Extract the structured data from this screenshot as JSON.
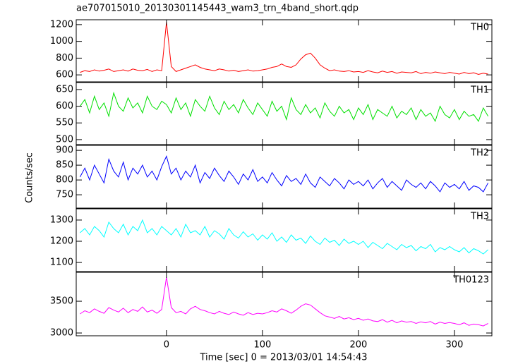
{
  "chart_data": [
    {
      "type": "line",
      "title": "ae707015010_20130301145443_wam3_trn_4band_short.qdp",
      "series": [
        {
          "name": "TH0",
          "color": "#ff0000",
          "values": [
            630,
            650,
            640,
            660,
            645,
            655,
            670,
            640,
            650,
            660,
            645,
            670,
            655,
            650,
            665,
            640,
            660,
            650,
            1230,
            700,
            640,
            660,
            680,
            700,
            720,
            690,
            670,
            660,
            650,
            670,
            660,
            645,
            655,
            640,
            650,
            660,
            645,
            650,
            660,
            670,
            690,
            700,
            730,
            700,
            690,
            720,
            790,
            840,
            860,
            800,
            720,
            680,
            650,
            660,
            645,
            640,
            650,
            635,
            640,
            630,
            650,
            635,
            625,
            645,
            630,
            640,
            620,
            635,
            630,
            625,
            640,
            615,
            630,
            620,
            635,
            625,
            615,
            630,
            620,
            610,
            630,
            615,
            625,
            605,
            620,
            610
          ]
        }
      ],
      "ylim": [
        517,
        1258
      ],
      "yticks": [
        600,
        800,
        1000,
        1200
      ]
    },
    {
      "type": "line",
      "series": [
        {
          "name": "TH1",
          "color": "#00e000",
          "values": [
            600,
            620,
            580,
            630,
            590,
            610,
            570,
            640,
            600,
            585,
            625,
            595,
            610,
            580,
            630,
            600,
            590,
            615,
            605,
            580,
            625,
            590,
            610,
            570,
            620,
            600,
            585,
            630,
            595,
            575,
            615,
            590,
            605,
            580,
            620,
            595,
            575,
            610,
            590,
            570,
            615,
            585,
            600,
            560,
            625,
            590,
            575,
            605,
            580,
            595,
            565,
            610,
            585,
            570,
            600,
            580,
            590,
            560,
            595,
            575,
            605,
            560,
            590,
            580,
            570,
            600,
            565,
            585,
            575,
            595,
            560,
            590,
            570,
            580,
            555,
            600,
            575,
            565,
            590,
            560,
            585,
            570,
            575,
            555,
            595,
            570
          ]
        }
      ],
      "ylim": [
        485,
        671
      ],
      "yticks": [
        500,
        550,
        600,
        650
      ]
    },
    {
      "type": "line",
      "ylabel": "Counts/sec",
      "series": [
        {
          "name": "TH2",
          "color": "#0000ff",
          "values": [
            810,
            840,
            800,
            850,
            820,
            790,
            870,
            830,
            810,
            860,
            800,
            840,
            820,
            850,
            810,
            830,
            800,
            845,
            880,
            820,
            840,
            800,
            830,
            810,
            850,
            790,
            825,
            805,
            840,
            815,
            795,
            830,
            810,
            785,
            820,
            800,
            835,
            795,
            810,
            790,
            825,
            800,
            780,
            815,
            795,
            805,
            785,
            820,
            790,
            775,
            810,
            795,
            780,
            805,
            790,
            770,
            800,
            785,
            795,
            780,
            800,
            770,
            790,
            805,
            775,
            795,
            780,
            765,
            800,
            785,
            775,
            790,
            770,
            795,
            780,
            760,
            790,
            775,
            785,
            770,
            795,
            765,
            780,
            775,
            760,
            790
          ]
        }
      ],
      "ylim": [
        705,
        917
      ],
      "yticks": [
        750,
        800,
        850,
        900
      ]
    },
    {
      "type": "line",
      "series": [
        {
          "name": "TH3",
          "color": "#00ffff",
          "values": [
            1240,
            1260,
            1230,
            1270,
            1250,
            1220,
            1290,
            1260,
            1240,
            1280,
            1230,
            1270,
            1250,
            1300,
            1240,
            1260,
            1230,
            1270,
            1250,
            1230,
            1260,
            1220,
            1280,
            1240,
            1250,
            1230,
            1270,
            1220,
            1250,
            1235,
            1210,
            1260,
            1230,
            1215,
            1245,
            1220,
            1235,
            1205,
            1230,
            1210,
            1240,
            1200,
            1220,
            1195,
            1230,
            1205,
            1215,
            1190,
            1225,
            1200,
            1185,
            1215,
            1195,
            1205,
            1180,
            1210,
            1190,
            1200,
            1185,
            1200,
            1170,
            1195,
            1180,
            1165,
            1190,
            1175,
            1160,
            1185,
            1170,
            1180,
            1155,
            1175,
            1165,
            1185,
            1150,
            1170,
            1160,
            1175,
            1160,
            1150,
            1170,
            1145,
            1165,
            1155,
            1140,
            1160
          ]
        }
      ],
      "ylim": [
        1057,
        1353
      ],
      "yticks": [
        1100,
        1200,
        1300
      ]
    },
    {
      "type": "line",
      "xlabel": "Time [sec] 0 = 2013/03/01 14:54:43",
      "x": [
        -90,
        -85,
        -80,
        -75,
        -70,
        -65,
        -60,
        -55,
        -50,
        -45,
        -40,
        -35,
        -30,
        -25,
        -20,
        -15,
        -10,
        -5,
        0,
        5,
        10,
        15,
        20,
        25,
        30,
        35,
        40,
        45,
        50,
        55,
        60,
        65,
        70,
        75,
        80,
        85,
        90,
        95,
        100,
        105,
        110,
        115,
        120,
        125,
        130,
        135,
        140,
        145,
        150,
        155,
        160,
        165,
        170,
        175,
        180,
        185,
        190,
        195,
        200,
        205,
        210,
        215,
        220,
        225,
        230,
        235,
        240,
        245,
        250,
        255,
        260,
        265,
        270,
        275,
        280,
        285,
        290,
        295,
        300,
        305,
        310,
        315,
        320,
        325,
        330,
        335
      ],
      "series": [
        {
          "name": "TH0123",
          "color": "#ff00ff",
          "values": [
            3300,
            3350,
            3320,
            3380,
            3340,
            3310,
            3400,
            3360,
            3330,
            3390,
            3320,
            3370,
            3340,
            3410,
            3330,
            3360,
            3310,
            3370,
            3880,
            3400,
            3320,
            3340,
            3300,
            3380,
            3420,
            3370,
            3350,
            3320,
            3300,
            3340,
            3310,
            3290,
            3330,
            3300,
            3280,
            3320,
            3290,
            3310,
            3300,
            3320,
            3350,
            3330,
            3380,
            3350,
            3310,
            3360,
            3420,
            3460,
            3440,
            3380,
            3320,
            3270,
            3250,
            3230,
            3260,
            3220,
            3240,
            3210,
            3230,
            3200,
            3220,
            3190,
            3180,
            3210,
            3170,
            3200,
            3160,
            3190,
            3170,
            3180,
            3150,
            3175,
            3160,
            3180,
            3140,
            3170,
            3150,
            3165,
            3150,
            3130,
            3160,
            3120,
            3140,
            3130,
            3110,
            3150
          ]
        }
      ],
      "xlim": [
        -94,
        339
      ],
      "xticks": [
        0,
        100,
        200,
        300
      ],
      "ylim": [
        2956,
        3956
      ],
      "yticks": [
        3000,
        3500
      ]
    }
  ]
}
